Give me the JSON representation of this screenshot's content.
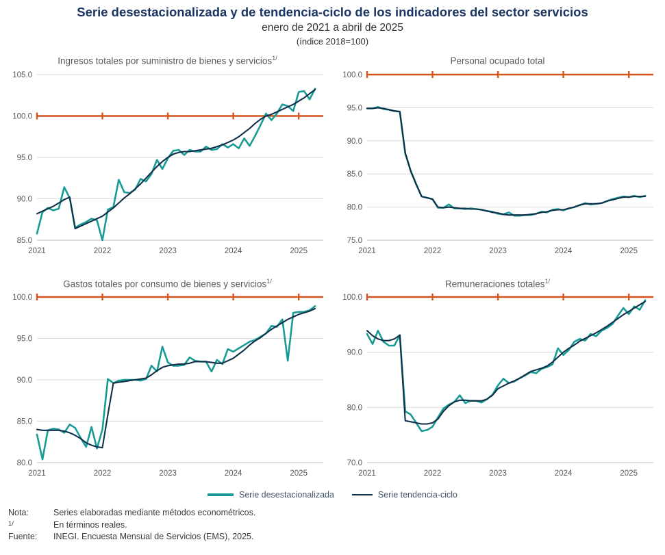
{
  "header": {
    "title": "Serie desestacionalizada y de tendencia-ciclo de los indicadores del sector servicios",
    "subtitle": "enero de 2021 a abril de 2025",
    "index_note": "(índice 2018=100)"
  },
  "legend": [
    {
      "label": "Serie desestacionalizada",
      "color": "#189B95"
    },
    {
      "label": "Serie tendencia-ciclo",
      "color": "#10304A"
    }
  ],
  "footnotes": [
    {
      "label": "Nota:",
      "text": "Series elaboradas mediante métodos econométricos."
    },
    {
      "label": "1/",
      "text": "En términos reales."
    },
    {
      "label": "Fuente:",
      "text": "INEGI. Encuesta Mensual de Servicios (EMS), 2025."
    }
  ],
  "style": {
    "header_title_color": "#1C3664",
    "reference_line_color": "#D4541E",
    "grid_color": "#DADADA",
    "axis_color": "#BFBFBF",
    "tick_label_color": "#595959",
    "chart_title_color": "#595959"
  },
  "chart_data": [
    {
      "type": "line",
      "title": "Ingresos totales por suministro de bienes y servicios",
      "title_sup": "1/",
      "ylim": [
        85,
        105
      ],
      "yticks": [
        85,
        90,
        95,
        100,
        105
      ],
      "ytick_labels": [
        "85.0",
        "90.0",
        "95.0",
        "100.0",
        "105.0"
      ],
      "x_tick_labels": [
        "2021",
        "2022",
        "2023",
        "2024",
        "2025"
      ],
      "x_tick_positions": [
        0,
        12,
        24,
        36,
        48
      ],
      "x_domain_months": 52.5,
      "x_range": "enero 2021 a abril 2025",
      "reference_line": 100,
      "grid": true,
      "series": [
        {
          "name": "Serie desestacionalizada",
          "values": [
            85.8,
            88.4,
            88.9,
            88.6,
            88.8,
            91.4,
            90.1,
            86.5,
            86.9,
            87.2,
            87.6,
            87.4,
            85.0,
            88.7,
            89.0,
            92.3,
            90.8,
            90.7,
            91.1,
            92.4,
            92.1,
            93.0,
            94.7,
            93.6,
            94.9,
            95.8,
            95.9,
            95.3,
            95.9,
            95.7,
            95.7,
            96.3,
            95.9,
            96.0,
            96.6,
            96.2,
            96.6,
            96.1,
            97.3,
            96.4,
            97.6,
            98.9,
            100.3,
            99.5,
            100.3,
            101.4,
            101.2,
            100.6,
            102.9,
            103.0,
            102.0,
            103.3
          ]
        },
        {
          "name": "Serie tendencia-ciclo",
          "values": [
            88.2,
            88.5,
            88.8,
            89.1,
            89.5,
            89.9,
            90.2,
            86.4,
            86.7,
            87.0,
            87.3,
            87.6,
            87.9,
            88.4,
            88.9,
            89.5,
            90.1,
            90.6,
            91.2,
            91.8,
            92.5,
            93.2,
            93.9,
            94.5,
            95.0,
            95.4,
            95.6,
            95.7,
            95.7,
            95.8,
            95.9,
            96.0,
            96.1,
            96.3,
            96.5,
            96.8,
            97.1,
            97.5,
            98.0,
            98.5,
            99.1,
            99.6,
            100.0,
            100.2,
            100.5,
            100.8,
            101.1,
            101.4,
            101.8,
            102.2,
            102.7,
            103.2
          ]
        }
      ]
    },
    {
      "type": "line",
      "title": "Personal ocupado total",
      "title_sup": "",
      "ylim": [
        75,
        100
      ],
      "yticks": [
        75,
        80,
        85,
        90,
        95,
        100
      ],
      "ytick_labels": [
        "75.0",
        "80.0",
        "85.0",
        "90.0",
        "95.0",
        "100.0"
      ],
      "x_tick_labels": [
        "2021",
        "2022",
        "2023",
        "2024",
        "2025"
      ],
      "x_tick_positions": [
        0,
        12,
        24,
        36,
        48
      ],
      "x_domain_months": 52.5,
      "x_range": "enero 2021 a abril 2025",
      "reference_line": 100,
      "grid": true,
      "series": [
        {
          "name": "Serie desestacionalizada",
          "values": [
            94.9,
            94.9,
            95.1,
            94.8,
            94.7,
            94.5,
            94.4,
            88.1,
            85.5,
            83.5,
            81.6,
            81.4,
            81.2,
            79.9,
            79.9,
            80.4,
            79.8,
            79.8,
            79.7,
            79.8,
            79.7,
            79.6,
            79.4,
            79.3,
            79.0,
            78.9,
            79.2,
            78.7,
            78.7,
            78.8,
            78.8,
            79.0,
            79.3,
            79.2,
            79.6,
            79.7,
            79.5,
            79.8,
            80.0,
            80.3,
            80.6,
            80.4,
            80.5,
            80.6,
            80.9,
            81.2,
            81.4,
            81.6,
            81.5,
            81.7,
            81.5,
            81.7
          ]
        },
        {
          "name": "Serie tendencia-ciclo",
          "values": [
            94.9,
            94.9,
            95.0,
            94.9,
            94.7,
            94.5,
            94.4,
            88.2,
            85.4,
            83.4,
            81.6,
            81.4,
            81.2,
            80.0,
            79.9,
            80.0,
            79.9,
            79.8,
            79.8,
            79.7,
            79.7,
            79.6,
            79.4,
            79.2,
            79.1,
            78.9,
            78.8,
            78.8,
            78.8,
            78.8,
            78.9,
            79.0,
            79.2,
            79.3,
            79.5,
            79.6,
            79.6,
            79.8,
            80.0,
            80.3,
            80.5,
            80.5,
            80.5,
            80.6,
            80.9,
            81.1,
            81.3,
            81.5,
            81.5,
            81.6,
            81.6,
            81.6
          ]
        }
      ]
    },
    {
      "type": "line",
      "title": "Gastos totales por consumo de bienes y servicios",
      "title_sup": "1/",
      "ylim": [
        80,
        100
      ],
      "yticks": [
        80,
        85,
        90,
        95,
        100
      ],
      "ytick_labels": [
        "80.0",
        "85.0",
        "90.0",
        "95.0",
        "100.0"
      ],
      "x_tick_labels": [
        "2021",
        "2022",
        "2023",
        "2024",
        "2025"
      ],
      "x_tick_positions": [
        0,
        12,
        24,
        36,
        48
      ],
      "x_domain_months": 52.5,
      "x_range": "enero 2021 a abril 2025",
      "reference_line": 100,
      "grid": true,
      "series": [
        {
          "name": "Serie desestacionalizada",
          "values": [
            83.4,
            80.4,
            83.9,
            84.1,
            84.0,
            83.6,
            84.6,
            84.2,
            83.0,
            81.9,
            84.3,
            81.7,
            84.0,
            90.1,
            89.6,
            89.9,
            90.0,
            90.0,
            90.0,
            89.9,
            90.1,
            91.7,
            91.0,
            94.0,
            92.1,
            91.7,
            91.7,
            91.8,
            92.7,
            92.3,
            92.2,
            92.2,
            91.0,
            92.4,
            91.9,
            93.7,
            93.4,
            93.8,
            94.2,
            94.6,
            94.8,
            95.2,
            95.6,
            96.5,
            96.4,
            97.3,
            92.3,
            98.1,
            98.2,
            98.2,
            98.4,
            98.9
          ]
        },
        {
          "name": "Serie tendencia-ciclo",
          "values": [
            84.0,
            83.9,
            83.9,
            83.9,
            83.9,
            83.8,
            83.6,
            83.3,
            82.9,
            82.4,
            82.1,
            81.9,
            81.8,
            85.8,
            89.6,
            89.7,
            89.8,
            89.9,
            90.0,
            90.1,
            90.2,
            90.6,
            91.1,
            91.5,
            91.7,
            91.8,
            91.9,
            91.9,
            92.0,
            92.2,
            92.2,
            92.2,
            92.1,
            92.0,
            92.0,
            92.3,
            92.6,
            93.1,
            93.6,
            94.2,
            94.7,
            95.1,
            95.6,
            96.1,
            96.5,
            96.9,
            97.3,
            97.6,
            97.9,
            98.1,
            98.3,
            98.6
          ]
        }
      ]
    },
    {
      "type": "line",
      "title": "Remuneraciones totales",
      "title_sup": "1/",
      "ylim": [
        70,
        100
      ],
      "yticks": [
        70,
        80,
        90,
        100
      ],
      "ytick_labels": [
        "70.0",
        "80.0",
        "90.0",
        "100.0"
      ],
      "x_tick_labels": [
        "2021",
        "2022",
        "2023",
        "2024",
        "2025"
      ],
      "x_tick_positions": [
        0,
        12,
        24,
        36,
        48
      ],
      "x_domain_months": 52.5,
      "x_range": "enero 2021 a abril 2025",
      "reference_line": 100,
      "grid": true,
      "series": [
        {
          "name": "Serie desestacionalizada",
          "values": [
            93.3,
            91.5,
            93.9,
            91.9,
            91.2,
            91.2,
            93.1,
            79.3,
            78.7,
            77.2,
            75.7,
            75.9,
            76.5,
            78.2,
            79.8,
            80.5,
            81.0,
            82.2,
            80.8,
            81.2,
            81.2,
            80.9,
            81.5,
            82.3,
            84.0,
            85.2,
            84.4,
            84.7,
            85.3,
            85.8,
            86.4,
            86.2,
            87.0,
            87.3,
            87.8,
            90.7,
            89.5,
            90.4,
            91.9,
            92.4,
            92.1,
            93.3,
            92.9,
            93.9,
            94.4,
            95.1,
            96.6,
            98.0,
            96.9,
            98.3,
            97.7,
            99.4
          ]
        },
        {
          "name": "Serie tendencia-ciclo",
          "values": [
            93.9,
            93.0,
            92.4,
            92.1,
            92.1,
            92.4,
            93.1,
            77.6,
            77.4,
            77.2,
            77.0,
            77.0,
            77.2,
            77.9,
            79.3,
            80.3,
            81.0,
            81.3,
            81.3,
            81.2,
            81.2,
            81.2,
            81.5,
            82.2,
            83.4,
            83.9,
            84.4,
            84.8,
            85.3,
            85.9,
            86.5,
            86.8,
            87.1,
            87.5,
            88.2,
            89.1,
            90.0,
            90.7,
            91.3,
            92.0,
            92.5,
            93.0,
            93.5,
            94.1,
            94.7,
            95.4,
            96.1,
            96.8,
            97.4,
            98.0,
            98.6,
            99.2
          ]
        }
      ]
    }
  ]
}
